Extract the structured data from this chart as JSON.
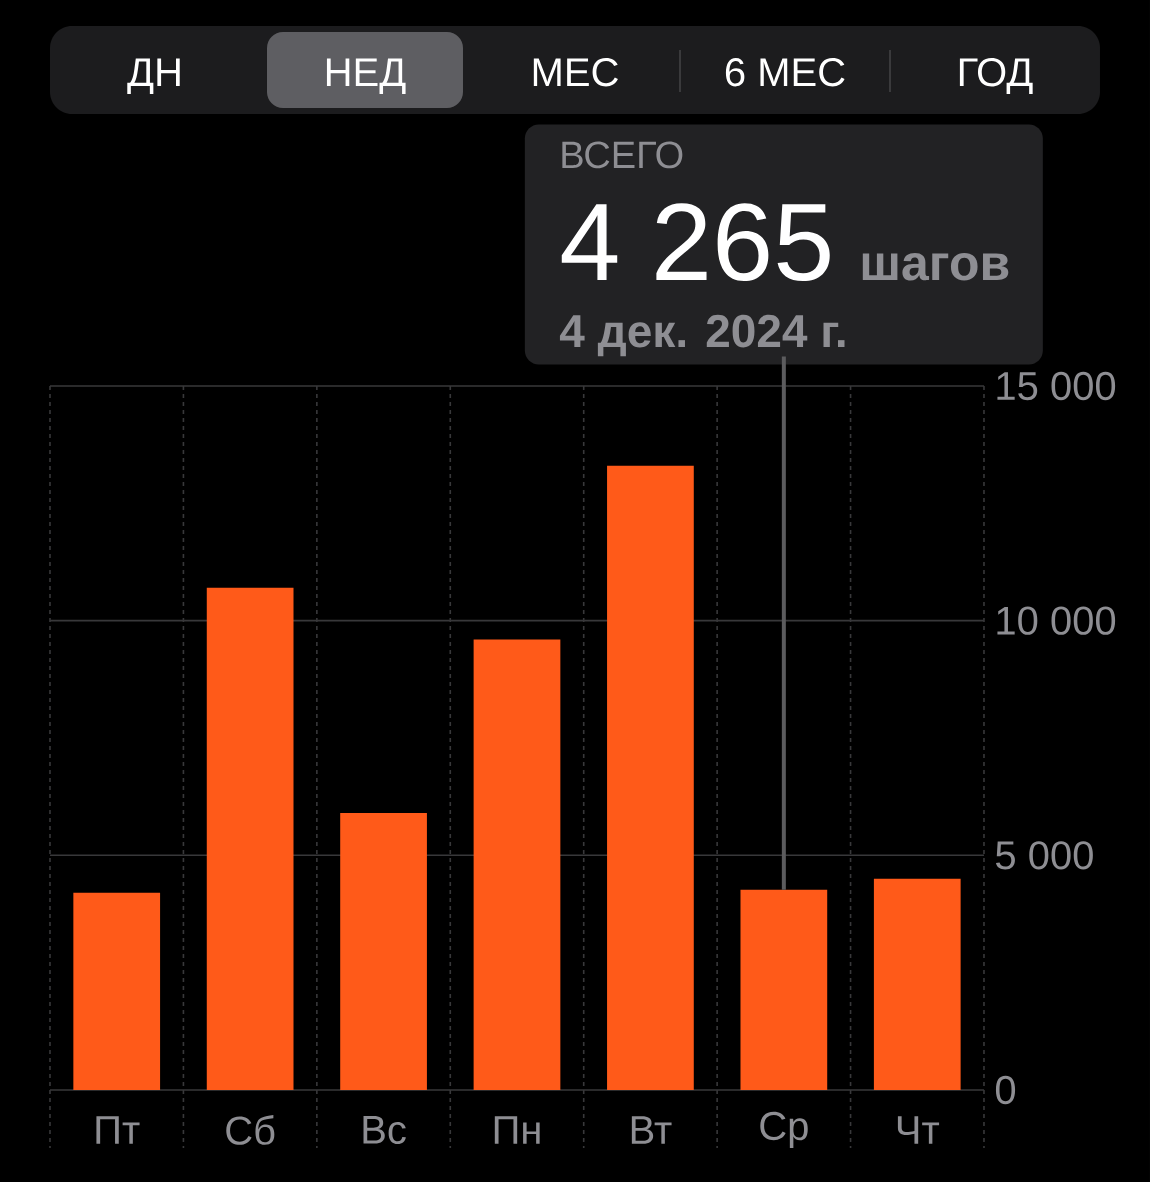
{
  "chart_data": {
    "type": "bar",
    "categories": [
      "Пт",
      "Сб",
      "Вс",
      "Пн",
      "Вт",
      "Ср",
      "Чт"
    ],
    "values": [
      4200,
      10700,
      5900,
      9600,
      13300,
      4265,
      4500
    ],
    "color": "#ff5a19",
    "ylim": [
      0,
      15000
    ],
    "yticks": [
      0,
      {
        "value": 5000,
        "label": "5 000"
      },
      {
        "value": 10000,
        "label": "10 000"
      },
      {
        "value": 15000,
        "label": "15 000"
      }
    ],
    "grid": true,
    "annotations": [
      "ДН",
      "НЕД",
      "МЕС",
      "6 МЕС",
      "ГОД",
      "ВСЕГО",
      "4 265",
      "шагов",
      {
        "text": "4 дек. 2024 г.",
        "x": "Ср",
        "y": 4265
      }
    ]
  }
}
